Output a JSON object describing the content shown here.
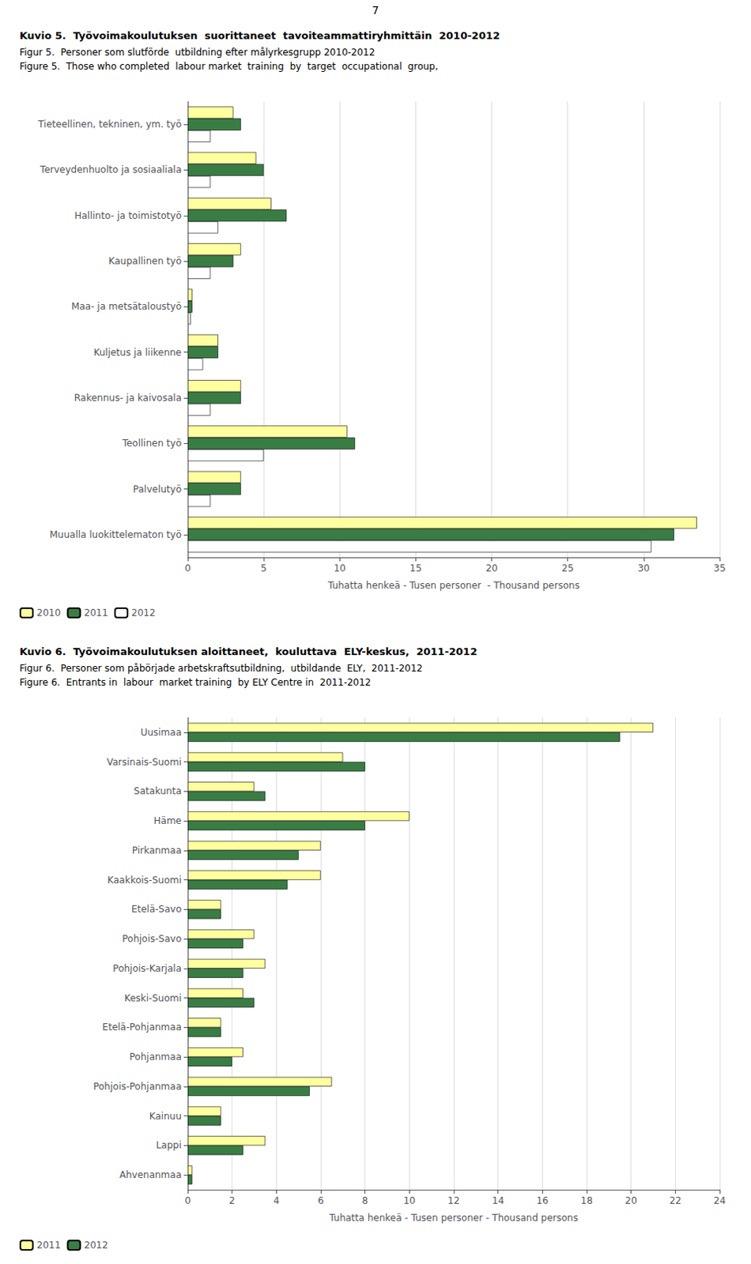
{
  "chart_data": [
    {
      "type": "bar",
      "orientation": "horizontal",
      "title": "Kuvio 5.  Työvoimakoulutuksen  suorittaneet  tavoiteammattiryhmittäin  2010-2012",
      "subtitle": "Figur 5.  Personer som slutförde  utbildning efter målyrkesgrupp 2010-2012\nFigure 5.  Those who completed  labour market  training  by  target  occupational  group,",
      "annotations": [
        "7"
      ],
      "categories": [
        "Tieteellinen, tekninen, ym. työ",
        "Terveydenhuolto ja sosiaaliala",
        "Hallinto- ja toimistotyö",
        "Kaupallinen työ",
        "Maa- ja metsätaloustyö",
        "Kuljetus ja liikenne",
        "Rakennus- ja kaivosala",
        "Teollinen työ",
        "Palvelutyö",
        "Muualla luokittelematon työ"
      ],
      "series": [
        {
          "name": "2010",
          "color": "#FFFFA0",
          "values": [
            3.0,
            4.5,
            5.5,
            3.5,
            0.3,
            2.0,
            3.5,
            10.5,
            3.5,
            33.5
          ]
        },
        {
          "name": "2011",
          "color": "#3A7D44",
          "values": [
            3.5,
            5.0,
            6.5,
            3.0,
            0.3,
            2.0,
            3.5,
            11.0,
            3.5,
            32.0
          ]
        },
        {
          "name": "2012",
          "color": "#FFFFFF",
          "values": [
            1.5,
            1.5,
            2.0,
            1.5,
            0.2,
            1.0,
            1.5,
            5.0,
            1.5,
            30.5
          ]
        }
      ],
      "xlabel": "Tuhatta henkeä - Tusen personer  - Thousand persons",
      "xlim": [
        0,
        35
      ],
      "xticks": [
        0,
        5,
        10,
        15,
        20,
        25,
        30,
        35
      ],
      "grid": true,
      "legend": "lower left"
    },
    {
      "type": "bar",
      "orientation": "horizontal",
      "title": "Kuvio 6.  Työvoimakoulutuksen aloittaneet,  kouluttava  ELY-keskus,  2011-2012",
      "subtitle": "Figur 6.  Personer som påbörjade arbetskraftsutbildning,  utbildande  ELY,  2011-2012\nFigure 6.  Entrants in  labour  market training  by ELY Centre in  2011-2012",
      "categories": [
        "Uusimaa",
        "Varsinais-Suomi",
        "Satakunta",
        "Häme",
        "Pirkanmaa",
        "Kaakkois-Suomi",
        "Etelä-Savo",
        "Pohjois-Savo",
        "Pohjois-Karjala",
        "Keski-Suomi",
        "Etelä-Pohjanmaa",
        "Pohjanmaa",
        "Pohjois-Pohjanmaa",
        "Kainuu",
        "Lappi",
        "Ahvenanmaa"
      ],
      "series": [
        {
          "name": "2011",
          "color": "#FFFFA0",
          "values": [
            21.0,
            7.0,
            3.0,
            10.0,
            6.0,
            6.0,
            1.5,
            3.0,
            3.5,
            2.5,
            1.5,
            2.5,
            6.5,
            1.5,
            3.5,
            0.2
          ]
        },
        {
          "name": "2012",
          "color": "#3A7D44",
          "values": [
            19.5,
            8.0,
            3.5,
            8.0,
            5.0,
            4.5,
            1.5,
            2.5,
            2.5,
            3.0,
            1.5,
            2.0,
            5.5,
            1.5,
            2.5,
            0.2
          ]
        }
      ],
      "xlabel": "Tuhatta henkeä - Tusen personer - Thousand persons",
      "xlim": [
        0,
        24
      ],
      "xticks": [
        0,
        2,
        4,
        6,
        8,
        10,
        12,
        14,
        16,
        18,
        20,
        22,
        24
      ],
      "grid": true,
      "legend": "lower left"
    }
  ]
}
